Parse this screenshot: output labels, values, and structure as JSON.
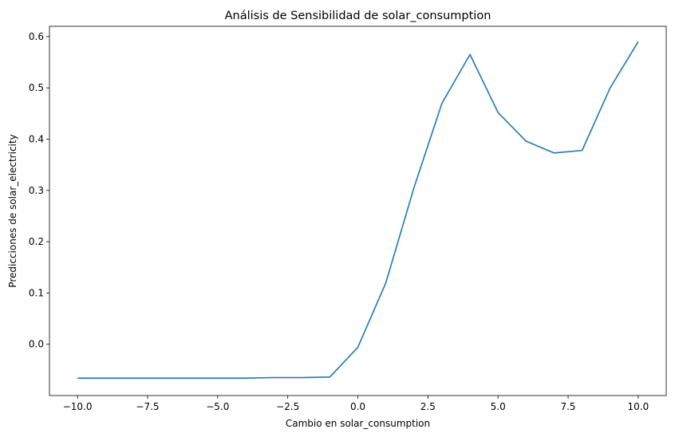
{
  "chart_data": {
    "type": "line",
    "title": "Análisis de Sensibilidad de solar_consumption",
    "xlabel": "Cambio en solar_consumption",
    "ylabel": "Predicciones de solar_electricity",
    "xlim": [
      -11.0,
      11.0
    ],
    "ylim": [
      -0.1,
      0.62
    ],
    "xticks": [
      -10.0,
      -7.5,
      -5.0,
      -2.5,
      0.0,
      2.5,
      5.0,
      7.5,
      10.0
    ],
    "xtick_labels": [
      "−10.0",
      "−7.5",
      "−5.0",
      "−2.5",
      "0.0",
      "2.5",
      "5.0",
      "7.5",
      "10.0"
    ],
    "yticks": [
      0.0,
      0.1,
      0.2,
      0.3,
      0.4,
      0.5,
      0.6
    ],
    "ytick_labels": [
      "0.0",
      "0.1",
      "0.2",
      "0.3",
      "0.4",
      "0.5",
      "0.6"
    ],
    "grid": false,
    "series": [
      {
        "color": "#1f77b4",
        "x": [
          -10,
          -9,
          -8,
          -7,
          -6,
          -5,
          -4,
          -3,
          -2,
          -1,
          0,
          1,
          2,
          3,
          4,
          5,
          6,
          7,
          8,
          9,
          10
        ],
        "values": [
          -0.066,
          -0.066,
          -0.066,
          -0.066,
          -0.066,
          -0.066,
          -0.066,
          -0.065,
          -0.065,
          -0.064,
          -0.006,
          0.12,
          0.305,
          0.47,
          0.565,
          0.452,
          0.396,
          0.373,
          0.378,
          0.5,
          0.59
        ]
      }
    ]
  }
}
